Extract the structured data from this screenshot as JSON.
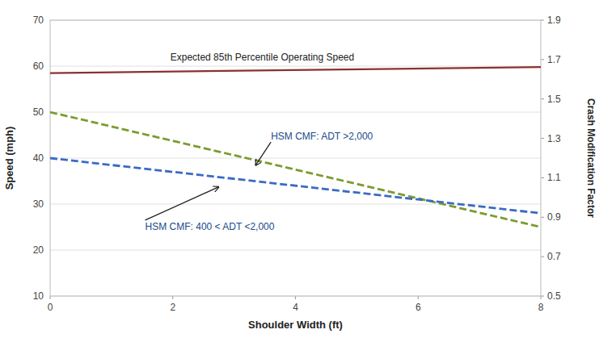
{
  "chart_data": {
    "type": "line",
    "xlabel": "Shoulder Width (ft)",
    "ylabel": "Speed (mph)",
    "y2label": "Crash Modification Factor",
    "x": [
      0,
      8
    ],
    "xlim": [
      0,
      8
    ],
    "xticks": [
      0,
      2,
      4,
      6,
      8
    ],
    "ylim": [
      10,
      70
    ],
    "yticks": [
      10,
      20,
      30,
      40,
      50,
      60,
      70
    ],
    "y2lim": [
      0.5,
      1.9
    ],
    "y2ticks": [
      0.5,
      0.7,
      0.9,
      1.1,
      1.3,
      1.5,
      1.7,
      1.9
    ],
    "grid": true,
    "series": [
      {
        "color": "#8B3030",
        "line_style": "solid",
        "values": [
          58.5,
          59.8
        ]
      },
      {
        "color": "#7B9C2E",
        "line_style": "dashed",
        "values": [
          50.0,
          25.0
        ]
      },
      {
        "color": "#3A6BC4",
        "line_style": "dashed",
        "values": [
          40.0,
          28.0
        ]
      }
    ],
    "annotations": [
      {
        "text": "HSM CMF: ADT >2,000",
        "xy": [
          3.35,
          38.44
        ],
        "xytext": [
          3.6,
          43.5
        ],
        "color": "#1a4a8a"
      },
      {
        "text": "HSM CMF: 400 < ADT <2,000",
        "xy": [
          2.75,
          33.75
        ],
        "xytext": [
          1.55,
          26.5
        ],
        "color": "#1a4a8a"
      }
    ],
    "label": "Expected 85th Percentile Operating Speed"
  }
}
